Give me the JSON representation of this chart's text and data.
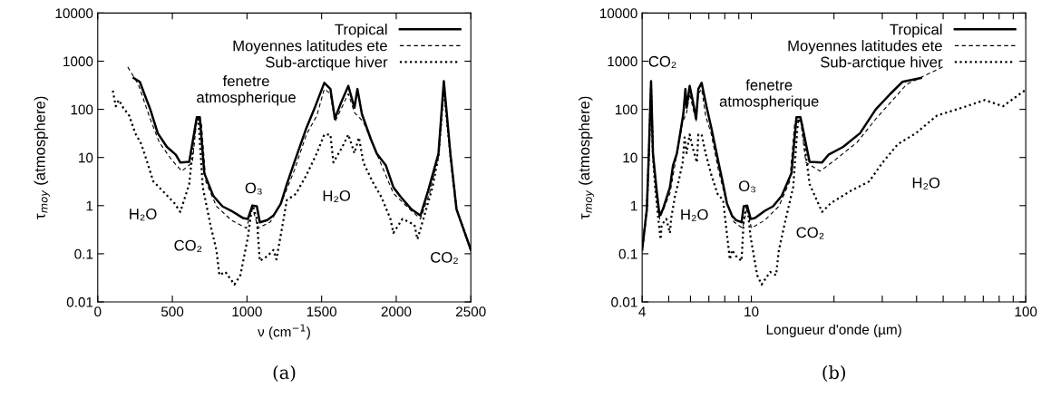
{
  "chart_data": [
    {
      "type": "line",
      "xlabel": "ν (cm$^{−1}$)",
      "ylabel": "τ$_{moy}$ (atmosphere)",
      "log": "y",
      "xlim": [
        0,
        2500
      ],
      "ylim": [
        0.01,
        10000
      ],
      "xticks": [
        0,
        500,
        1000,
        1500,
        2000,
        2500
      ],
      "yticks": [
        0.01,
        0.1,
        1,
        10,
        100,
        1000,
        10000
      ],
      "grid": false,
      "legend": "top right",
      "series": [
        {
          "name": "Tropical",
          "color": "#000000",
          "line_style": "solid",
          "x": [
            241,
            282,
            312,
            352,
            402,
            463,
            523,
            553,
            613,
            664,
            684,
            714,
            774,
            835,
            895,
            975,
            1006,
            1036,
            1066,
            1086,
            1136,
            1177,
            1227,
            1267,
            1317,
            1398,
            1458,
            1518,
            1559,
            1589,
            1629,
            1679,
            1720,
            1740,
            1770,
            1830,
            1870,
            1931,
            1981,
            2032,
            2102,
            2162,
            2213,
            2283,
            2319,
            2363,
            2404,
            2500
          ],
          "values": [
            447,
            372,
            210,
            100,
            32,
            16.6,
            11.4,
            7.9,
            8.1,
            69,
            69,
            4.7,
            1.6,
            0.97,
            0.78,
            0.55,
            0.53,
            1.0,
            0.97,
            0.45,
            0.5,
            0.62,
            1.1,
            2.8,
            7.9,
            41,
            116,
            355,
            265,
            64,
            135,
            307,
            108,
            265,
            80,
            24,
            12,
            6.8,
            2.4,
            1.5,
            0.84,
            0.62,
            2.0,
            12,
            385,
            12,
            0.84,
            0.12
          ]
        },
        {
          "name": "Moyennes latitudes ete",
          "color": "#000000",
          "line_style": "dashed",
          "x": [
            201,
            272,
            352,
            412,
            493,
            563,
            634,
            664,
            694,
            724,
            795,
            895,
            996,
            1036,
            1076,
            1157,
            1237,
            1317,
            1398,
            1468,
            1518,
            1559,
            1589,
            1679,
            1720,
            1780,
            1860,
            1981,
            2102,
            2162,
            2223,
            2283,
            2319,
            2363,
            2404,
            2500
          ],
          "values": [
            760,
            330,
            63,
            20.8,
            9.1,
            5.2,
            7.9,
            63,
            55,
            3.2,
            0.97,
            0.5,
            0.34,
            0.9,
            0.34,
            0.46,
            1.3,
            5.4,
            30,
            74,
            265,
            211,
            55,
            211,
            86,
            55,
            14,
            1.8,
            0.78,
            0.53,
            1.8,
            10.6,
            280,
            10.6,
            0.84,
            0.12
          ]
        },
        {
          "name": "Sub-arctique hiver",
          "color": "#000000",
          "line_style": "dotted",
          "x": [
            101,
            121,
            141,
            171,
            211,
            251,
            292,
            332,
            372,
            433,
            513,
            553,
            613,
            654,
            674,
            704,
            755,
            795,
            815,
            855,
            916,
            956,
            1006,
            1036,
            1066,
            1086,
            1136,
            1177,
            1197,
            1227,
            1267,
            1328,
            1398,
            1468,
            1518,
            1559,
            1579,
            1639,
            1679,
            1720,
            1750,
            1780,
            1840,
            1901,
            1961,
            1981,
            2042,
            2122,
            2142,
            2182,
            2243,
            2283,
            2319,
            2363,
            2404,
            2500
          ],
          "values": [
            245,
            116,
            156,
            108,
            74,
            32,
            19,
            7.9,
            3.2,
            2.05,
            1.13,
            0.74,
            2.8,
            47,
            63,
            2.4,
            0.4,
            0.12,
            0.036,
            0.042,
            0.023,
            0.036,
            0.22,
            1.05,
            0.53,
            0.071,
            0.089,
            0.12,
            0.076,
            0.25,
            1.3,
            1.76,
            4.3,
            12.3,
            30,
            30,
            7.9,
            16.6,
            30,
            12.3,
            26,
            7.9,
            3.2,
            1.5,
            0.53,
            0.27,
            0.53,
            0.4,
            0.2,
            0.53,
            2.4,
            10.6,
            280,
            10.6,
            0.84,
            0.12
          ]
        }
      ],
      "annotations": [
        "H₂O",
        "CO₂",
        "fenetre\natmospherique",
        "O₃",
        "H₂O",
        "CO₂",
        "(a)"
      ]
    },
    {
      "type": "line",
      "xlabel": "Longueur d'onde (µm)",
      "ylabel": "τ$_{moy}$ (atmosphere)",
      "log": "xy",
      "xlim": [
        4,
        100
      ],
      "ylim": [
        0.01,
        10000
      ],
      "xticks": [
        4,
        {
          "value": 5,
          "label": null
        },
        {
          "value": 6,
          "label": null
        },
        {
          "value": 7,
          "label": null
        },
        {
          "value": 8,
          "label": null
        },
        {
          "value": 9,
          "label": null
        },
        10,
        {
          "value": 20,
          "label": null
        },
        {
          "value": 30,
          "label": null
        },
        {
          "value": 40,
          "label": null
        },
        {
          "value": 50,
          "label": null
        },
        {
          "value": 60,
          "label": null
        },
        {
          "value": 70,
          "label": null
        },
        {
          "value": 80,
          "label": null
        },
        {
          "value": 90,
          "label": null
        },
        100
      ],
      "yticks": [
        0.01,
        0.1,
        1,
        10,
        100,
        1000,
        10000
      ],
      "grid": false,
      "legend": "top right",
      "series": [
        {
          "name": "Tropical",
          "color": "#000000",
          "line_style": "solid",
          "x": [
            41.5,
            35.5,
            32.1,
            28.4,
            24.9,
            21.6,
            19.1,
            18.1,
            16.3,
            15.1,
            14.6,
            14.0,
            12.9,
            12.0,
            11.2,
            10.3,
            9.94,
            9.65,
            9.38,
            9.21,
            8.8,
            8.5,
            8.15,
            7.89,
            7.59,
            7.15,
            6.86,
            6.59,
            6.41,
            6.29,
            6.14,
            5.96,
            5.81,
            5.75,
            5.65,
            5.46,
            5.35,
            5.18,
            5.05,
            4.92,
            4.76,
            4.63,
            4.52,
            4.38,
            4.31,
            4.23,
            4.16,
            4.0
          ],
          "values": [
            447,
            372,
            210,
            100,
            32,
            16.6,
            11.4,
            7.9,
            8.1,
            69,
            69,
            4.7,
            1.6,
            0.97,
            0.78,
            0.55,
            0.53,
            1.0,
            0.97,
            0.45,
            0.5,
            0.62,
            1.1,
            2.8,
            7.9,
            41,
            116,
            355,
            265,
            64,
            135,
            307,
            108,
            265,
            80,
            24,
            12,
            6.8,
            2.4,
            1.5,
            0.84,
            0.62,
            2.0,
            12,
            385,
            12,
            0.84,
            0.12
          ]
        },
        {
          "name": "Moyennes latitudes ete",
          "color": "#000000",
          "line_style": "dashed",
          "x": [
            49.8,
            36.8,
            28.4,
            24.3,
            20.3,
            17.8,
            15.8,
            15.1,
            14.4,
            13.8,
            12.6,
            11.2,
            10.0,
            9.65,
            9.29,
            8.64,
            8.08,
            7.59,
            7.15,
            6.81,
            6.59,
            6.41,
            6.29,
            5.96,
            5.81,
            5.62,
            5.38,
            5.05,
            4.76,
            4.63,
            4.5,
            4.38,
            4.31,
            4.23,
            4.16,
            4.0
          ],
          "values": [
            760,
            330,
            63,
            20.8,
            9.1,
            5.2,
            7.9,
            63,
            55,
            3.2,
            0.97,
            0.5,
            0.34,
            0.9,
            0.34,
            0.46,
            1.3,
            5.4,
            30,
            74,
            265,
            211,
            55,
            211,
            86,
            55,
            14,
            1.8,
            0.78,
            0.53,
            1.8,
            10.6,
            280,
            10.6,
            0.84,
            0.12
          ]
        },
        {
          "name": "Sub-arctique hiver",
          "color": "#000000",
          "line_style": "dotted",
          "x": [
            99.0,
            82.6,
            70.9,
            58.5,
            47.4,
            39.8,
            34.2,
            30.1,
            26.9,
            23.1,
            19.5,
            18.1,
            16.3,
            15.3,
            14.8,
            14.2,
            13.2,
            12.6,
            12.3,
            11.7,
            10.9,
            10.5,
            9.94,
            9.65,
            9.38,
            9.21,
            8.8,
            8.5,
            8.35,
            8.15,
            7.89,
            7.53,
            7.15,
            6.81,
            6.59,
            6.41,
            6.33,
            6.1,
            5.96,
            5.81,
            5.71,
            5.62,
            5.43,
            5.26,
            5.1,
            5.05,
            4.9,
            4.71,
            4.67,
            4.58,
            4.46,
            4.38,
            4.31,
            4.23,
            4.16,
            4.0
          ],
          "values": [
            245,
            116,
            156,
            108,
            74,
            32,
            19,
            7.9,
            3.2,
            2.05,
            1.13,
            0.74,
            2.8,
            47,
            63,
            2.4,
            0.4,
            0.12,
            0.036,
            0.042,
            0.023,
            0.036,
            0.22,
            1.05,
            0.53,
            0.071,
            0.089,
            0.12,
            0.076,
            0.25,
            1.3,
            1.76,
            4.3,
            12.3,
            30,
            30,
            7.9,
            16.6,
            30,
            12.3,
            26,
            7.9,
            3.2,
            1.5,
            0.53,
            0.27,
            0.53,
            0.4,
            0.2,
            0.53,
            2.4,
            10.6,
            280,
            10.6,
            0.84,
            0.12
          ]
        }
      ],
      "annotations": [
        "CO₂",
        "H₂O",
        "fenetre\natmospherique",
        "O₃",
        "CO₂",
        "H₂O",
        "(b)"
      ]
    }
  ]
}
